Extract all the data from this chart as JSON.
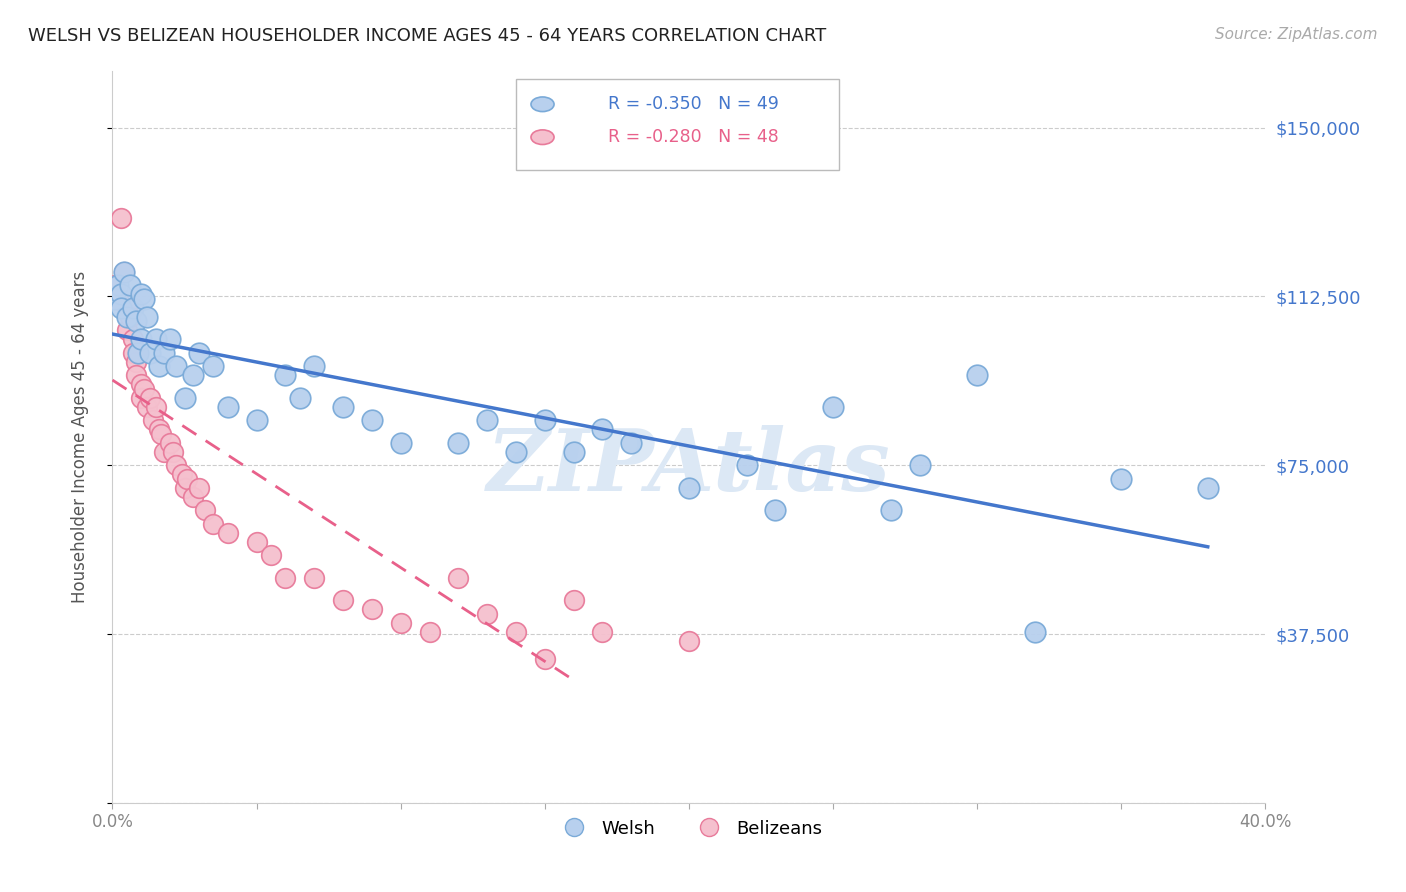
{
  "title": "WELSH VS BELIZEAN HOUSEHOLDER INCOME AGES 45 - 64 YEARS CORRELATION CHART",
  "source": "Source: ZipAtlas.com",
  "ylabel": "Householder Income Ages 45 - 64 years",
  "x_min": 0.0,
  "x_max": 0.4,
  "x_ticks": [
    0.0,
    0.05,
    0.1,
    0.15,
    0.2,
    0.25,
    0.3,
    0.35,
    0.4
  ],
  "x_tick_labels": [
    "0.0%",
    "",
    "",
    "",
    "",
    "",
    "",
    "",
    "40.0%"
  ],
  "y_min": 0,
  "y_max": 162500,
  "y_ticks": [
    0,
    37500,
    75000,
    112500,
    150000
  ],
  "y_tick_labels": [
    "",
    "$37,500",
    "$75,000",
    "$112,500",
    "$150,000"
  ],
  "grid_color": "#cccccc",
  "background_color": "#ffffff",
  "welsh_color": "#b8d0ee",
  "welsh_edge_color": "#7aaad8",
  "belizean_color": "#f5c0ce",
  "belizean_edge_color": "#e87a9a",
  "welsh_R": -0.35,
  "welsh_N": 49,
  "belizean_R": -0.28,
  "belizean_N": 48,
  "welsh_line_color": "#4477cc",
  "belizean_line_color": "#e8608a",
  "watermark": "ZIPAtlas",
  "watermark_color": "#dce8f5",
  "legend_welsh_label": "Welsh",
  "legend_belizean_label": "Belizeans",
  "welsh_x": [
    0.001,
    0.002,
    0.003,
    0.003,
    0.004,
    0.005,
    0.006,
    0.007,
    0.008,
    0.009,
    0.01,
    0.01,
    0.011,
    0.012,
    0.013,
    0.015,
    0.016,
    0.018,
    0.02,
    0.022,
    0.025,
    0.028,
    0.03,
    0.035,
    0.04,
    0.05,
    0.06,
    0.065,
    0.07,
    0.08,
    0.09,
    0.1,
    0.12,
    0.13,
    0.14,
    0.15,
    0.16,
    0.17,
    0.18,
    0.2,
    0.22,
    0.23,
    0.25,
    0.27,
    0.28,
    0.3,
    0.32,
    0.35,
    0.38
  ],
  "welsh_y": [
    112000,
    115000,
    113000,
    110000,
    118000,
    108000,
    115000,
    110000,
    107000,
    100000,
    103000,
    113000,
    112000,
    108000,
    100000,
    103000,
    97000,
    100000,
    103000,
    97000,
    90000,
    95000,
    100000,
    97000,
    88000,
    85000,
    95000,
    90000,
    97000,
    88000,
    85000,
    80000,
    80000,
    85000,
    78000,
    85000,
    78000,
    83000,
    80000,
    70000,
    75000,
    65000,
    88000,
    65000,
    75000,
    95000,
    38000,
    72000,
    70000
  ],
  "belizean_x": [
    0.001,
    0.002,
    0.003,
    0.004,
    0.005,
    0.005,
    0.006,
    0.007,
    0.007,
    0.008,
    0.008,
    0.009,
    0.01,
    0.01,
    0.011,
    0.012,
    0.013,
    0.014,
    0.015,
    0.016,
    0.017,
    0.018,
    0.02,
    0.021,
    0.022,
    0.024,
    0.025,
    0.026,
    0.028,
    0.03,
    0.032,
    0.035,
    0.04,
    0.05,
    0.055,
    0.06,
    0.07,
    0.08,
    0.09,
    0.1,
    0.11,
    0.12,
    0.13,
    0.14,
    0.15,
    0.16,
    0.17,
    0.2
  ],
  "belizean_y": [
    115000,
    112000,
    130000,
    118000,
    110000,
    105000,
    108000,
    103000,
    100000,
    98000,
    95000,
    100000,
    93000,
    90000,
    92000,
    88000,
    90000,
    85000,
    88000,
    83000,
    82000,
    78000,
    80000,
    78000,
    75000,
    73000,
    70000,
    72000,
    68000,
    70000,
    65000,
    62000,
    60000,
    58000,
    55000,
    50000,
    50000,
    45000,
    43000,
    40000,
    38000,
    50000,
    42000,
    38000,
    32000,
    45000,
    38000,
    36000
  ]
}
